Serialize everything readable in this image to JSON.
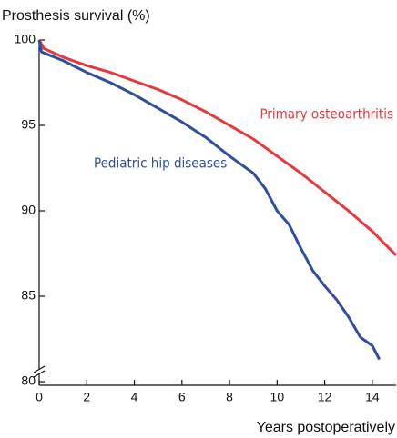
{
  "chart_data": {
    "type": "line",
    "ylabel": "Prosthesis survival (%)",
    "xlabel": "Years postoperatively",
    "xlim": [
      0,
      15
    ],
    "xticks": [
      0,
      2,
      4,
      6,
      8,
      10,
      12,
      14
    ],
    "ylim": [
      80,
      100
    ],
    "yticks": [
      80,
      85,
      90,
      95,
      100
    ],
    "series": [
      {
        "name": "Primary osteoarthritis",
        "color": "#e8383d",
        "x": [
          0,
          0.2,
          1,
          2,
          3,
          4,
          5,
          6,
          7,
          8,
          9,
          10,
          11,
          12,
          13,
          14,
          15
        ],
        "values": [
          100,
          99.5,
          99.0,
          98.5,
          98.1,
          97.6,
          97.1,
          96.5,
          95.8,
          95.0,
          94.2,
          93.2,
          92.2,
          91.1,
          90.0,
          88.8,
          87.4
        ]
      },
      {
        "name": "Pediatric hip diseases",
        "color": "#2e4fa0",
        "x": [
          0,
          0.1,
          1,
          2,
          3,
          4,
          5,
          6,
          7,
          8,
          9,
          9.5,
          10,
          10.5,
          11,
          11.5,
          12,
          12.5,
          13,
          13.5,
          14,
          14.3
        ],
        "values": [
          100,
          99.3,
          98.8,
          98.1,
          97.5,
          96.8,
          96.0,
          95.2,
          94.3,
          93.2,
          92.2,
          91.3,
          90.0,
          89.2,
          87.8,
          86.5,
          85.6,
          84.8,
          83.8,
          82.6,
          82.1,
          81.3
        ]
      }
    ]
  }
}
